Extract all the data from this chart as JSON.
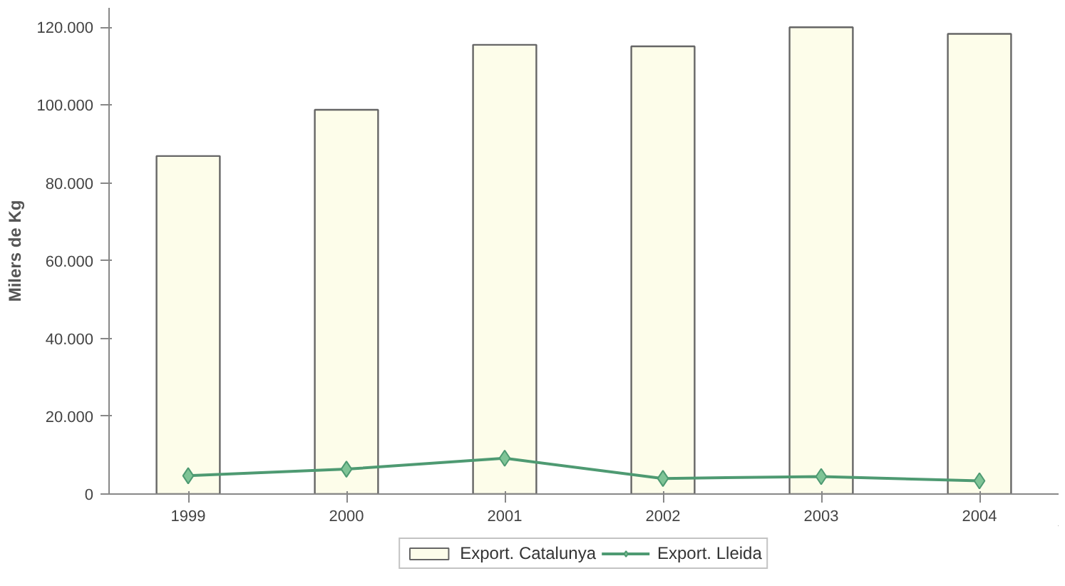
{
  "chart_data": {
    "type": "bar",
    "ylabel": "Milers de Kg",
    "categories": [
      "1999",
      "2000",
      "2001",
      "2002",
      "2003",
      "2004"
    ],
    "series": [
      {
        "name": "Export. Catalunya",
        "color": "#fdfdea",
        "values": [
          86900,
          98800,
          115500,
          115100,
          120000,
          118300
        ]
      },
      {
        "name": "Export. Lleida",
        "type": "line",
        "color": "#4e9a72",
        "marker": "diamond",
        "values": [
          4700,
          6400,
          9200,
          4000,
          4500,
          3400
        ]
      }
    ],
    "ylim": [
      0,
      125000
    ],
    "yticks": [
      {
        "value": 0,
        "label": "0"
      },
      {
        "value": 20000,
        "label": "20.000"
      },
      {
        "value": 40000,
        "label": "40.000"
      },
      {
        "value": 60000,
        "label": "60.000"
      },
      {
        "value": 80000,
        "label": "80.000"
      },
      {
        "value": 100000,
        "label": "100.000"
      },
      {
        "value": 120000,
        "label": "120.000"
      }
    ],
    "grid": false,
    "legend": "bottom"
  }
}
